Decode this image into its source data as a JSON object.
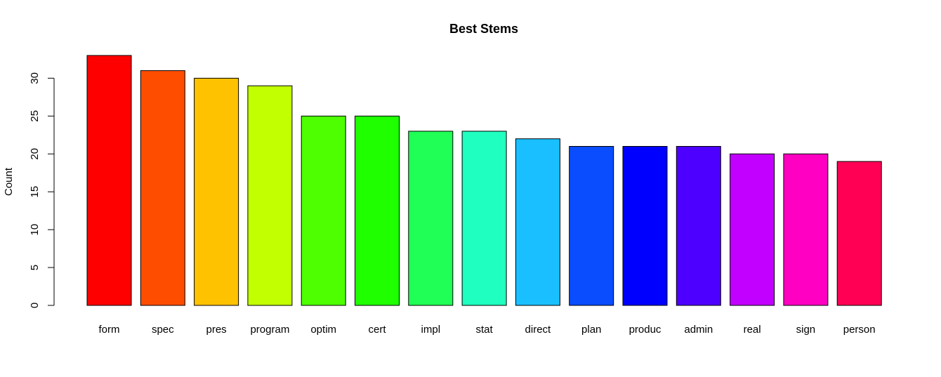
{
  "chart_data": {
    "type": "bar",
    "title": "Best Stems",
    "xlabel": "",
    "ylabel": "Count",
    "ylim": [
      0,
      33
    ],
    "yticks": [
      0,
      5,
      10,
      15,
      20,
      25,
      30
    ],
    "grid": false,
    "legend": "none",
    "categories": [
      "form",
      "spec",
      "pres",
      "program",
      "optim",
      "cert",
      "impl",
      "stat",
      "direct",
      "plan",
      "produc",
      "admin",
      "real",
      "sign",
      "person"
    ],
    "values": [
      33,
      31,
      30,
      29,
      25,
      25,
      23,
      23,
      22,
      21,
      21,
      21,
      20,
      20,
      19
    ],
    "colors": [
      "#FF0000",
      "#FF4D00",
      "#FFC200",
      "#C2FF00",
      "#4DFF00",
      "#1FFF00",
      "#1FFF55",
      "#1FFFBF",
      "#1ABFFF",
      "#0A4DFF",
      "#0000FF",
      "#4D00FF",
      "#C200FF",
      "#FF00C2",
      "#FF0055"
    ]
  }
}
